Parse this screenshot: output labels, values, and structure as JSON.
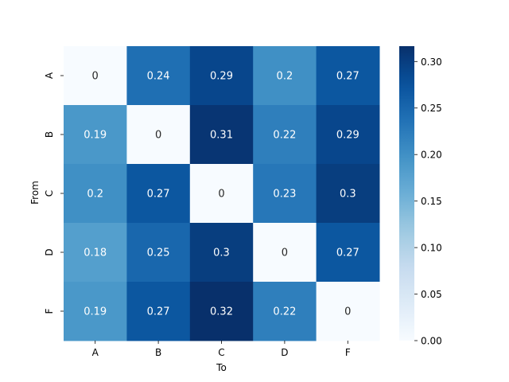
{
  "chart_data": {
    "type": "heatmap",
    "title": "",
    "xlabel": "To",
    "ylabel": "From",
    "x_categories": [
      "A",
      "B",
      "C",
      "D",
      "F"
    ],
    "y_categories": [
      "A",
      "B",
      "C",
      "D",
      "F"
    ],
    "values": [
      [
        0,
        0.24,
        0.29,
        0.2,
        0.27
      ],
      [
        0.19,
        0,
        0.31,
        0.22,
        0.29
      ],
      [
        0.2,
        0.27,
        0,
        0.23,
        0.3
      ],
      [
        0.18,
        0.25,
        0.3,
        0,
        0.27
      ],
      [
        0.19,
        0.27,
        0.32,
        0.22,
        0
      ]
    ],
    "colormap": "Blues",
    "vmin": 0,
    "vmax": 0.3165,
    "colorbar_ticks": [
      "0.00",
      "0.05",
      "0.10",
      "0.15",
      "0.20",
      "0.25",
      "0.30"
    ],
    "annotation_colors": {
      "light": "#ffffff",
      "dark": "#262626"
    }
  }
}
